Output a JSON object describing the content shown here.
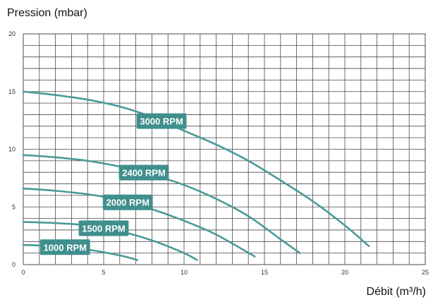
{
  "chart_data": {
    "type": "line",
    "title": "",
    "ylabel": "Pression (mbar)",
    "xlabel": "Débit (m³/h)",
    "xlim": [
      0,
      25
    ],
    "ylim": [
      0,
      20
    ],
    "xticks": [
      0,
      5,
      10,
      15,
      20,
      25
    ],
    "yticks": [
      0,
      5,
      10,
      15,
      20
    ],
    "grid": true,
    "line_color": "#4a9a98",
    "label_bg_color": "#3f8f8d",
    "series": [
      {
        "name": "3000 RPM",
        "x": [
          0,
          2,
          4,
          6,
          8,
          10,
          12,
          14,
          16,
          18,
          20,
          21.5
        ],
        "y": [
          15,
          14.7,
          14.3,
          13.7,
          12.8,
          11.6,
          10.4,
          9.0,
          7.3,
          5.5,
          3.4,
          1.6
        ]
      },
      {
        "name": "2400 RPM",
        "x": [
          0,
          2,
          4,
          6,
          8,
          10,
          12,
          14,
          16,
          17.2
        ],
        "y": [
          9.5,
          9.3,
          9.0,
          8.5,
          7.8,
          6.9,
          5.7,
          4.2,
          2.2,
          1.0
        ]
      },
      {
        "name": "2000 RPM",
        "x": [
          0,
          2,
          4,
          6,
          8,
          10,
          12,
          14.4
        ],
        "y": [
          6.6,
          6.4,
          6.1,
          5.6,
          4.8,
          3.8,
          2.6,
          0.7
        ]
      },
      {
        "name": "1500 RPM",
        "x": [
          0,
          2,
          4,
          6,
          8,
          10,
          10.8
        ],
        "y": [
          3.7,
          3.6,
          3.4,
          2.9,
          2.1,
          1.0,
          0.4
        ]
      },
      {
        "name": "1000 RPM",
        "x": [
          0,
          2,
          4,
          6,
          7.1
        ],
        "y": [
          1.7,
          1.6,
          1.3,
          0.8,
          0.4
        ]
      }
    ]
  }
}
